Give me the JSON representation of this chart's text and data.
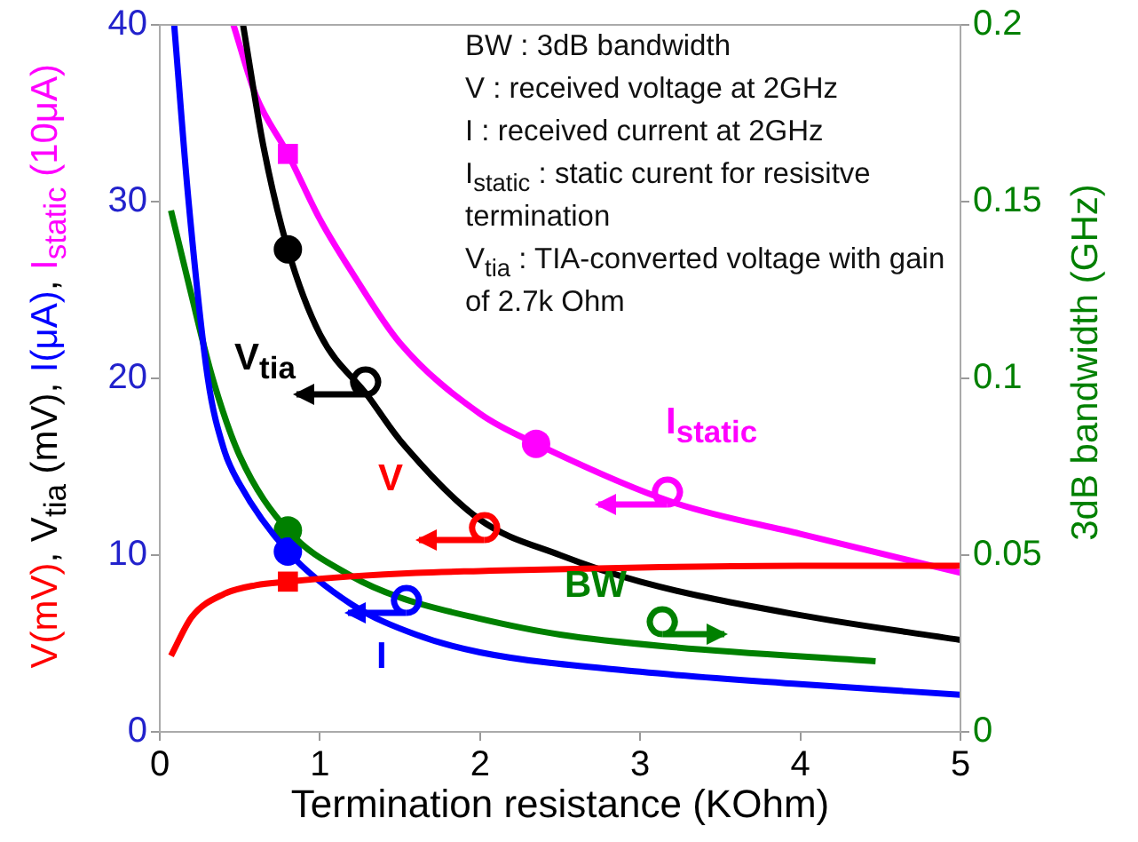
{
  "chart_data": {
    "type": "line",
    "xlabel": "Termination resistance (KOhm)",
    "ylabel": "V(mV), V$_{tia}$ (mV), I(μA), I$_{static}$ (10μA)",
    "y2label": "3dB bandwidth (GHz)",
    "annotations": [
      "BW : 3dB bandwidth",
      "V : received voltage at 2GHz",
      "I : received current at 2GHz",
      "I$_{static}$ : static curent for resisitve termination",
      "V$_{tia}$ : TIA-converted voltage with gain of 2.7k Ohm"
    ],
    "xlim": [
      0,
      5
    ],
    "xticks": [
      0,
      1,
      2,
      3,
      4,
      5
    ],
    "ylim": [
      0,
      40
    ],
    "yticks": [
      0,
      10,
      20,
      30,
      40
    ],
    "y2lim": [
      0,
      0.2
    ],
    "y2ticks": [
      0,
      0.05,
      0.1,
      0.15,
      0.2
    ],
    "marker": "none",
    "series": [
      {
        "name": "V",
        "color": "#ff0000",
        "x": [
          0.07,
          0.2,
          0.4,
          0.6,
          0.8,
          1.2,
          1.6,
          2,
          3,
          4,
          5
        ],
        "values": [
          4.3,
          6.5,
          7.8,
          8.3,
          8.5,
          8.8,
          9.0,
          9.1,
          9.3,
          9.4,
          9.4
        ]
      },
      {
        "name": "V$_{tia}$",
        "color": "#000000",
        "x": [
          0.52,
          0.65,
          0.8,
          1,
          1.3,
          1.5,
          2,
          2.5,
          3,
          4,
          5
        ],
        "values": [
          40,
          33,
          27.3,
          22.5,
          19,
          16.5,
          12,
          10,
          8.5,
          6.6,
          5.2
        ]
      },
      {
        "name": "I",
        "color": "#0000ff",
        "x": [
          0.09,
          0.18,
          0.3,
          0.4,
          0.5,
          0.8,
          1.2,
          1.6,
          2,
          3,
          4,
          5
        ],
        "values": [
          40,
          30,
          20,
          16,
          14,
          10.2,
          7.2,
          5.5,
          4.5,
          3.4,
          2.7,
          2.1
        ]
      },
      {
        "name": "I$_{static}$",
        "color": "#ff00ff",
        "x": [
          0.46,
          0.6,
          0.8,
          1,
          1.2,
          1.5,
          2,
          2.35,
          3.2,
          4,
          5
        ],
        "values": [
          40,
          36,
          32.7,
          29,
          26,
          22,
          18,
          16.3,
          13,
          11.2,
          9
        ]
      },
      {
        "name": "BW",
        "color": "#008000",
        "axis": "y2",
        "x": [
          0.07,
          0.19,
          0.33,
          0.5,
          0.8,
          1.2,
          1.5,
          2,
          2.5,
          3.2,
          4.47
        ],
        "values": [
          0.1475,
          0.125,
          0.1,
          0.078,
          0.057,
          0.044,
          0.038,
          0.032,
          0.0275,
          0.024,
          0.02
        ]
      },
      {
        "type": "scatter",
        "marker": "square",
        "color": "#ff0000",
        "x": [
          0.8
        ],
        "values": [
          8.5
        ]
      },
      {
        "type": "scatter",
        "marker": "circle",
        "color": "#000000",
        "x": [
          0.8
        ],
        "values": [
          27.3
        ]
      },
      {
        "type": "scatter",
        "marker": "circle",
        "color": "#0000ff",
        "x": [
          0.8
        ],
        "values": [
          10.2
        ]
      },
      {
        "type": "scatter",
        "marker": "square",
        "color": "#ff00ff",
        "x": [
          0.8
        ],
        "values": [
          32.7
        ]
      },
      {
        "type": "scatter",
        "marker": "circle",
        "color": "#ff00ff",
        "x": [
          2.35
        ],
        "values": [
          16.3
        ]
      },
      {
        "type": "scatter",
        "marker": "circle",
        "color": "#008000",
        "axis": "y2",
        "x": [
          0.8
        ],
        "values": [
          0.057
        ]
      }
    ]
  }
}
